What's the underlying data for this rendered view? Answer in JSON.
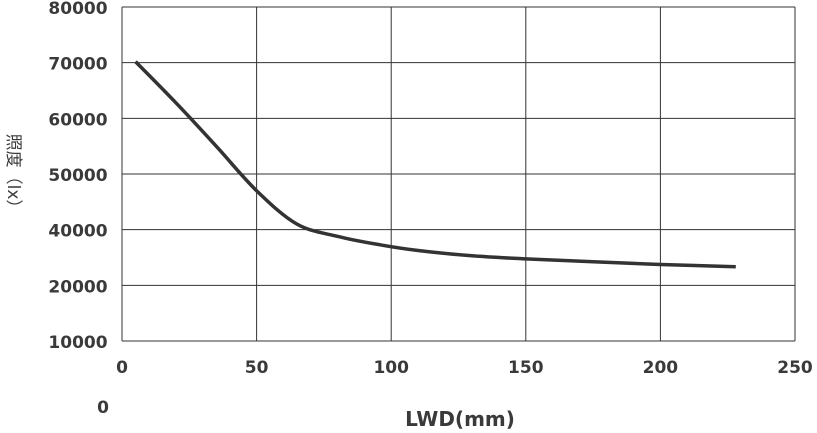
{
  "chart_data": {
    "type": "line",
    "xlabel": "LWD(mm)",
    "ylabel": "照度（lx）",
    "x_ticks": [
      "0",
      "50",
      "100",
      "150",
      "200",
      "250"
    ],
    "y_ticks": [
      "80000",
      "70000",
      "60000",
      "50000",
      "40000",
      "20000",
      "10000"
    ],
    "y_stray_label": "0",
    "xlim": [
      0,
      250
    ],
    "grid": true,
    "series": [
      {
        "points": [
          [
            5,
            70200
          ],
          [
            20,
            62800
          ],
          [
            35,
            55000
          ],
          [
            50,
            47000
          ],
          [
            65,
            41000
          ],
          [
            80,
            37600
          ],
          [
            95,
            34700
          ],
          [
            110,
            32500
          ],
          [
            130,
            30600
          ],
          [
            150,
            29500
          ],
          [
            175,
            28500
          ],
          [
            200,
            27500
          ],
          [
            228,
            26700
          ]
        ]
      }
    ]
  },
  "colors": {
    "line": "#333333",
    "grid": "#333333",
    "text": "#3a3a3a"
  }
}
